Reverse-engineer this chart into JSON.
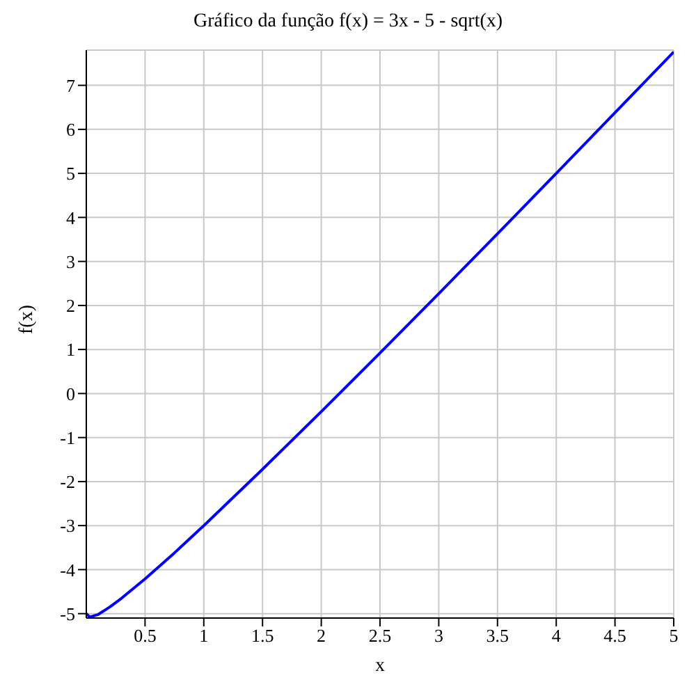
{
  "chart_data": {
    "type": "line",
    "title": "Gráfico da função f(x) = 3x - 5 - sqrt(x)",
    "xlabel": "x",
    "ylabel": "f(x)",
    "series": [
      {
        "color": "#0000ff",
        "x": [
          0,
          0.03,
          0.1,
          0.2,
          0.3,
          0.5,
          0.75,
          1,
          1.5,
          2,
          2.5,
          3,
          3.5,
          4,
          4.5,
          5
        ],
        "values": [
          -5,
          -5.08,
          -5.02,
          -4.85,
          -4.65,
          -4.21,
          -3.62,
          -3,
          -1.72,
          -0.41,
          0.92,
          2.27,
          3.63,
          5,
          6.38,
          7.76
        ]
      }
    ],
    "xlim": [
      0,
      5
    ],
    "xticks": [
      0.5,
      1,
      1.5,
      2,
      2.5,
      3,
      3.5,
      4,
      4.5,
      5
    ],
    "ylim": [
      -5.1,
      7.8
    ],
    "yticks": [
      -5,
      -4,
      -3,
      -2,
      -1,
      0,
      1,
      2,
      3,
      4,
      5,
      6,
      7
    ],
    "grid": true,
    "marker": "none",
    "line_style": "solid"
  }
}
